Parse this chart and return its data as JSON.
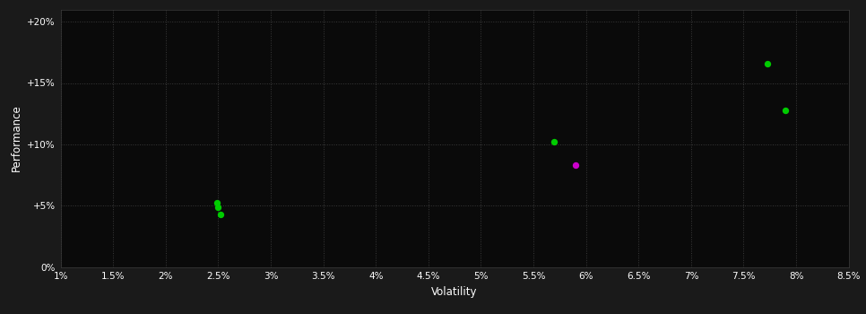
{
  "background_color": "#1a1a1a",
  "plot_bg_color": "#0a0a0a",
  "grid_color": "#3a3a3a",
  "text_color": "#ffffff",
  "xlabel": "Volatility",
  "ylabel": "Performance",
  "xlim": [
    0.01,
    0.085
  ],
  "ylim": [
    0.0,
    0.21
  ],
  "xticks": [
    0.01,
    0.015,
    0.02,
    0.025,
    0.03,
    0.035,
    0.04,
    0.045,
    0.05,
    0.055,
    0.06,
    0.065,
    0.07,
    0.075,
    0.08,
    0.085
  ],
  "yticks": [
    0.0,
    0.05,
    0.1,
    0.15,
    0.2
  ],
  "ytick_labels": [
    "0%",
    "+5%",
    "+10%",
    "+15%",
    "+20%"
  ],
  "xtick_labels": [
    "1%",
    "1.5%",
    "2%",
    "2.5%",
    "3%",
    "3.5%",
    "4%",
    "4.5%",
    "5%",
    "5.5%",
    "6%",
    "6.5%",
    "7%",
    "7.5%",
    "8%",
    "8.5%"
  ],
  "scatter_x": [
    0.0249,
    0.025,
    0.0252,
    0.057,
    0.059,
    0.0773,
    0.079
  ],
  "scatter_y": [
    0.052,
    0.049,
    0.043,
    0.102,
    0.083,
    0.166,
    0.128
  ],
  "scatter_colors": [
    "#00cc00",
    "#00cc00",
    "#00cc00",
    "#00cc00",
    "#cc00cc",
    "#00cc00",
    "#00cc00"
  ],
  "scatter_size": 28
}
